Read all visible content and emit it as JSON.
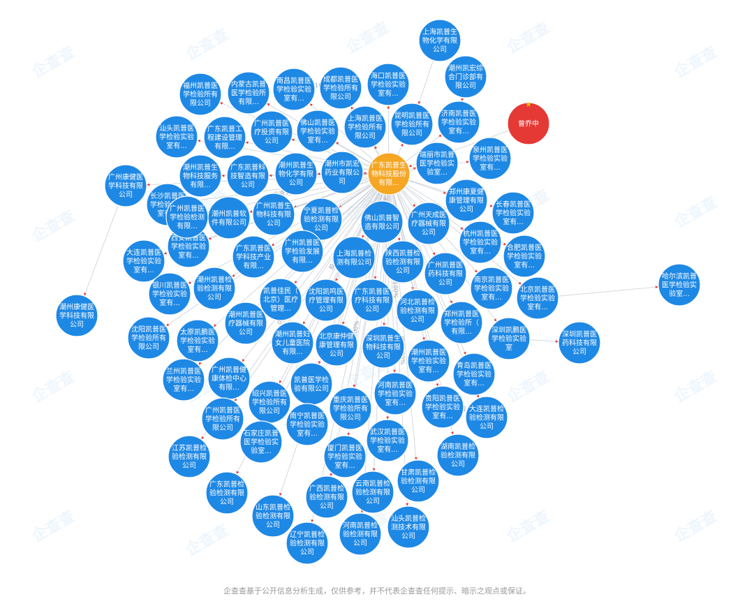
{
  "disclaimer": "企查查基于公开信息分析生成，仅供参考，并不代表企查查任何提示、暗示之观点或保证。",
  "watermark_text": "企查查",
  "colors": {
    "node": "#1e88e5",
    "center": "#f5a623",
    "status": "#e53935",
    "edge": "#c9cfd6"
  },
  "center_node": {
    "id": "center",
    "label": "广东凯普生物科技股份有限..."
  },
  "status_node": {
    "id": "status",
    "label": "曾乔中"
  },
  "edge_labels": [
    {
      "from": "center",
      "to": "n65",
      "text": "投资100%"
    },
    {
      "from": "n67",
      "to": "n68",
      "text": "投资100%"
    },
    {
      "from": "n6",
      "to": "n5",
      "text": "投资100%"
    },
    {
      "from": "center",
      "to": "n53",
      "text": "投资100%"
    },
    {
      "from": "center",
      "to": "n52",
      "text": "投资100%"
    },
    {
      "from": "center",
      "to": "n33",
      "text": "投资100%"
    },
    {
      "from": "center",
      "to": "n38",
      "text": "投资100%"
    },
    {
      "from": "center",
      "to": "n78",
      "text": "投资100%"
    },
    {
      "from": "center",
      "to": "n72",
      "text": "0.8333%"
    },
    {
      "from": "center",
      "to": "n80",
      "text": "投资100%"
    },
    {
      "from": "center",
      "to": "n83",
      "text": "投资100%"
    }
  ],
  "nodes": [
    {
      "id": "n1",
      "label": "上海凯普生物化学有限公司"
    },
    {
      "id": "n2",
      "label": "潮州凯宏综合门诊部有限公司"
    },
    {
      "id": "n3",
      "label": "福州凯普医学检验所有限公司"
    },
    {
      "id": "n4",
      "label": "内蒙古凯普医学检验所有限..."
    },
    {
      "id": "n5",
      "label": "南昌凯普医学检验实验室有..."
    },
    {
      "id": "n6",
      "label": "成都凯普医学检验所有限公司"
    },
    {
      "id": "n7",
      "label": "海口凯普医学检验实验室有..."
    },
    {
      "id": "n8",
      "label": "汕头凯普医学检验实验室有..."
    },
    {
      "id": "n9",
      "label": "广东凯普工程建设管理有限..."
    },
    {
      "id": "n10",
      "label": "广州凯普医疗投资有限公司"
    },
    {
      "id": "n11",
      "label": "佛山凯普医学检验实验室有..."
    },
    {
      "id": "n12",
      "label": "上海凯普医学检验所有限公司"
    },
    {
      "id": "n13",
      "label": "昆明凯普医学检验所有限公司"
    },
    {
      "id": "n14",
      "label": "济南凯普医学检验实验室有..."
    },
    {
      "id": "n15",
      "label": "广州康健医学科技有限公司"
    },
    {
      "id": "n16",
      "label": "潮州凯普生物科技服务有限..."
    },
    {
      "id": "n17",
      "label": "广东凯普科技智造有限公司"
    },
    {
      "id": "n18",
      "label": "潮州凯普生物化学有限公司"
    },
    {
      "id": "n19",
      "label": "潮州市凯宏药业有限公司"
    },
    {
      "id": "n20",
      "label": "瑞丽市凯普医学检验实验室..."
    },
    {
      "id": "n21",
      "label": "泉州凯普医学检验实验室有..."
    },
    {
      "id": "n22",
      "label": "长沙凯普医学检验实验室有..."
    },
    {
      "id": "n23",
      "label": "潮州凯普软件有限公司"
    },
    {
      "id": "n24",
      "label": "广州凯普生物科技有限公司"
    },
    {
      "id": "n25",
      "label": "宁夏凯普检验检测有限公司"
    },
    {
      "id": "n26",
      "label": "佛山凯普智造有限公司"
    },
    {
      "id": "n27",
      "label": "郑州康夏健康管理有限公司"
    },
    {
      "id": "n28",
      "label": "长春凯普医学检验实验室有..."
    },
    {
      "id": "n29",
      "label": "广州天成医疗器械有限公司"
    },
    {
      "id": "n30",
      "label": "西安凯普医学检验实验室有..."
    },
    {
      "id": "n31",
      "label": "广东凯普医学科技产业有限..."
    },
    {
      "id": "n32",
      "label": "广州凯普医学检验发展有限..."
    },
    {
      "id": "n33",
      "label": "上海凯普检测有限公司"
    },
    {
      "id": "n34",
      "label": "陕西凯普检验检测有限公司"
    },
    {
      "id": "n35",
      "label": "杭州凯普医学检验实验室有..."
    },
    {
      "id": "n36",
      "label": "合肥凯普医学检验实验室有..."
    },
    {
      "id": "n37",
      "label": "大连凯普医学检验实验室有..."
    },
    {
      "id": "n38",
      "label": "广州凯普医药科技有限公司"
    },
    {
      "id": "n39",
      "label": "南京凯普医学检验实验室有..."
    },
    {
      "id": "n40",
      "label": "北京凯普医学检验实验室有..."
    },
    {
      "id": "n41",
      "label": "哈尔滨凯普医学检验实验室..."
    },
    {
      "id": "n42",
      "label": "银川凯普医学检验实验室有..."
    },
    {
      "id": "n43",
      "label": "潮州凯普检验检测有限公司"
    },
    {
      "id": "n44",
      "label": "凯普佳民（北京）医疗管理..."
    },
    {
      "id": "n45",
      "label": "沈阳凯鸣医疗管理有限公司"
    },
    {
      "id": "n46",
      "label": "广东凯普医疗科技有限公司"
    },
    {
      "id": "n47",
      "label": "河北凯普检验检测有限公司"
    },
    {
      "id": "n48",
      "label": "郑州凯普医学检验所（有限..."
    },
    {
      "id": "n49",
      "label": "潮州康健医学科技有限公司"
    },
    {
      "id": "n50",
      "label": "沈阳凯普医学检验所有限公司"
    },
    {
      "id": "n51",
      "label": "太原凯鹏医学检验实验室有..."
    },
    {
      "id": "n52",
      "label": "潮州凯普医疗器械有限公司"
    },
    {
      "id": "n53",
      "label": "潮州凯普妇女儿童医院有限..."
    },
    {
      "id": "n54",
      "label": "北京康仲健康管理有限公司"
    },
    {
      "id": "n55",
      "label": "深圳凯普生物科技有限公司"
    },
    {
      "id": "n56",
      "label": "深圳凯鹏医学检验实验室"
    },
    {
      "id": "n57",
      "label": "深圳凯普医药科技有限公司"
    },
    {
      "id": "n58",
      "label": "兰州凯普医学检验实验室有..."
    },
    {
      "id": "n59",
      "label": "广州凯普健康体检中心有限..."
    },
    {
      "id": "n60",
      "label": "凯普医学检验有限公司"
    },
    {
      "id": "n61",
      "label": "潮州凯普医学检验实验室有..."
    },
    {
      "id": "n62",
      "label": "青岛凯普医学检验实验室有..."
    },
    {
      "id": "n63",
      "label": "广州凯普医学检验所有限公司"
    },
    {
      "id": "n64",
      "label": "绍兴凯普医学检验所有限公司"
    },
    {
      "id": "n65",
      "label": "河南凯普医学检验实验室有..."
    },
    {
      "id": "n66",
      "label": "重庆凯普医学检验所有限公司"
    },
    {
      "id": "n67",
      "label": "贵阳凯普医学检验实验室有..."
    },
    {
      "id": "n68",
      "label": "大连凯普检验检测有限公司"
    },
    {
      "id": "n69",
      "label": "石家庄凯普医学检验实验室..."
    },
    {
      "id": "n70",
      "label": "南宁凯普医学检验实验室有..."
    },
    {
      "id": "n71",
      "label": "武汉凯普医学检验实验室有..."
    },
    {
      "id": "n72",
      "label": "江苏凯普检验检测有限公司"
    },
    {
      "id": "n73",
      "label": "厦门凯普医学检验实验室有..."
    },
    {
      "id": "n74",
      "label": "湖南凯普检验检测有限公司"
    },
    {
      "id": "n75",
      "label": "甘肃凯普检验检测有限公司"
    },
    {
      "id": "n76",
      "label": "广东凯普检验检测有限公司"
    },
    {
      "id": "n77",
      "label": "云南凯普检验检测有限公司"
    },
    {
      "id": "n78",
      "label": "广西凯普检验检测有限公司"
    },
    {
      "id": "n79",
      "label": "山东凯普检验检测有限公司"
    },
    {
      "id": "n80",
      "label": "汕头凯普检测技术有限公司"
    },
    {
      "id": "n81",
      "label": "辽宁凯普检验检测有限公司"
    },
    {
      "id": "n82",
      "label": "河南凯普检验检测有限公司"
    },
    {
      "id": "n83",
      "label": "广州凯普医学检验检测有限..."
    }
  ]
}
